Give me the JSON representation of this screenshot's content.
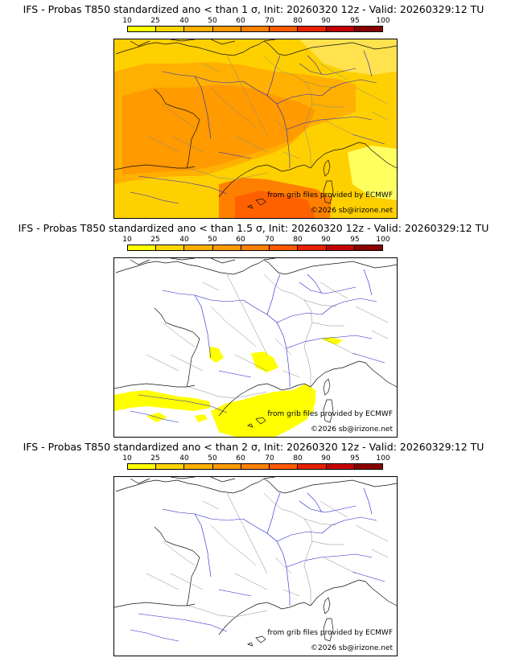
{
  "colorbar": {
    "labels": [
      "10",
      "25",
      "40",
      "50",
      "60",
      "70",
      "80",
      "90",
      "95",
      "100"
    ],
    "colors": [
      "#ffff00",
      "#ffd700",
      "#ffb000",
      "#ff9a00",
      "#ff8000",
      "#ff5a00",
      "#e62200",
      "#c40000",
      "#8b0000",
      "#5a0000"
    ]
  },
  "panels": [
    {
      "title": "IFS - Probas T850  standardized ano < than 1 σ, Init: 20260320 12z - Valid: 20260329:12 TU",
      "threshold": "1 σ",
      "credit_source": "from grib files provided by ECMWF",
      "credit_copyright": "©2026 sb@irizone.net"
    },
    {
      "title": "IFS - Probas T850  standardized ano < than 1.5 σ, Init: 20260320 12z - Valid: 20260329:12 TU",
      "threshold": "1.5 σ",
      "credit_source": "from grib files provided by ECMWF",
      "credit_copyright": "©2026 sb@irizone.net"
    },
    {
      "title": "IFS - Probas T850  standardized ano < than 2 σ, Init: 20260320 12z - Valid: 20260329:12 TU",
      "threshold": "2 σ",
      "credit_source": "from grib files provided by ECMWF",
      "credit_copyright": "©2026 sb@irizone.net"
    }
  ]
}
